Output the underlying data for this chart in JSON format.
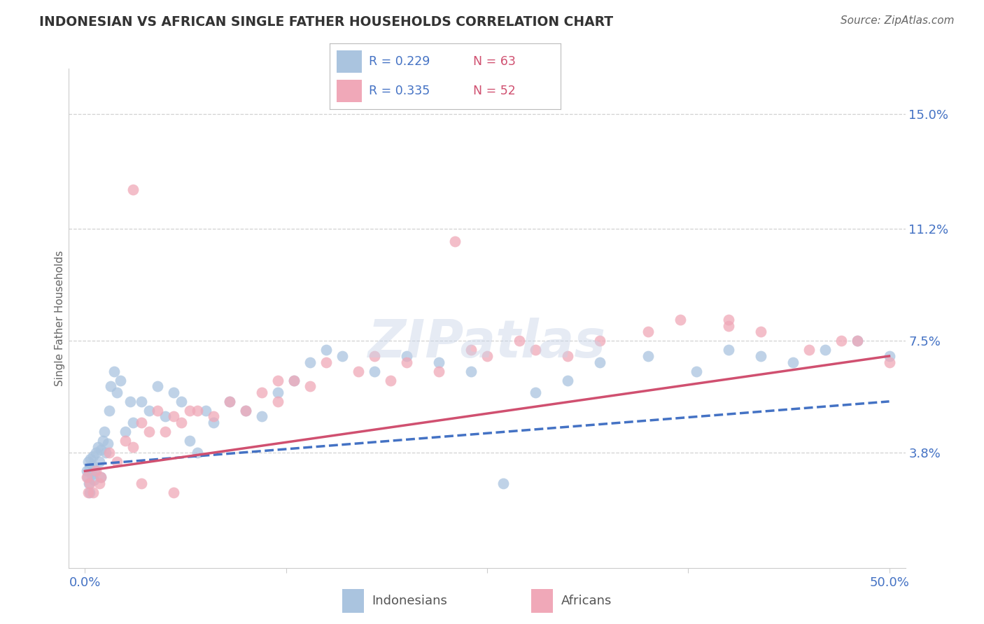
{
  "title": "INDONESIAN VS AFRICAN SINGLE FATHER HOUSEHOLDS CORRELATION CHART",
  "source": "Source: ZipAtlas.com",
  "ylabel": "Single Father Households",
  "xlim": [
    0.0,
    50.0
  ],
  "ylim": [
    0.0,
    16.0
  ],
  "xtick_vals": [
    0.0,
    12.5,
    25.0,
    37.5,
    50.0
  ],
  "xtick_labels": [
    "0.0%",
    "",
    "",
    "",
    "50.0%"
  ],
  "ytick_vals": [
    3.8,
    7.5,
    11.2,
    15.0
  ],
  "ytick_labels": [
    "3.8%",
    "7.5%",
    "11.2%",
    "15.0%"
  ],
  "indonesian_R": 0.229,
  "indonesian_N": 63,
  "african_R": 0.335,
  "african_N": 52,
  "color_indonesian": "#aac4df",
  "color_african": "#f0a8b8",
  "line_color_indonesian": "#4472C4",
  "line_color_african": "#d05070",
  "label_color_blue": "#4472C4",
  "label_color_pink": "#d05070",
  "title_color": "#333333",
  "source_color": "#666666",
  "grid_color": "#cccccc",
  "background_color": "#ffffff",
  "indonesian_x": [
    0.1,
    0.15,
    0.2,
    0.25,
    0.3,
    0.35,
    0.4,
    0.45,
    0.5,
    0.55,
    0.6,
    0.7,
    0.8,
    0.9,
    1.0,
    1.1,
    1.2,
    1.3,
    1.4,
    1.5,
    1.6,
    1.8,
    2.0,
    2.2,
    2.5,
    2.8,
    3.0,
    3.5,
    4.0,
    4.5,
    5.0,
    5.5,
    6.0,
    6.5,
    7.0,
    7.5,
    8.0,
    9.0,
    10.0,
    11.0,
    12.0,
    13.0,
    14.0,
    15.0,
    16.0,
    18.0,
    20.0,
    22.0,
    24.0,
    26.0,
    28.0,
    30.0,
    32.0,
    35.0,
    38.0,
    40.0,
    42.0,
    44.0,
    46.0,
    48.0,
    50.0,
    0.3,
    1.0
  ],
  "indonesian_y": [
    3.2,
    3.0,
    3.5,
    2.8,
    3.3,
    3.6,
    3.1,
    3.4,
    3.7,
    2.9,
    3.2,
    3.8,
    4.0,
    3.5,
    3.9,
    4.2,
    4.5,
    3.8,
    4.1,
    5.2,
    6.0,
    6.5,
    5.8,
    6.2,
    4.5,
    5.5,
    4.8,
    5.5,
    5.2,
    6.0,
    5.0,
    5.8,
    5.5,
    4.2,
    3.8,
    5.2,
    4.8,
    5.5,
    5.2,
    5.0,
    5.8,
    6.2,
    6.8,
    7.2,
    7.0,
    6.5,
    7.0,
    6.8,
    6.5,
    2.8,
    5.8,
    6.2,
    6.8,
    7.0,
    6.5,
    7.2,
    7.0,
    6.8,
    7.2,
    7.5,
    7.0,
    2.5,
    3.0
  ],
  "african_x": [
    0.1,
    0.2,
    0.3,
    0.5,
    0.7,
    0.9,
    1.0,
    1.5,
    2.0,
    2.5,
    3.0,
    3.5,
    4.0,
    4.5,
    5.0,
    5.5,
    6.0,
    7.0,
    8.0,
    9.0,
    10.0,
    11.0,
    12.0,
    13.0,
    14.0,
    15.0,
    17.0,
    18.0,
    19.0,
    20.0,
    22.0,
    24.0,
    25.0,
    27.0,
    28.0,
    30.0,
    32.0,
    35.0,
    37.0,
    40.0,
    42.0,
    45.0,
    47.0,
    48.0,
    50.0,
    3.0,
    6.5,
    12.0,
    23.0,
    40.0,
    3.5,
    5.5
  ],
  "african_y": [
    3.0,
    2.5,
    2.8,
    2.5,
    3.2,
    2.8,
    3.0,
    3.8,
    3.5,
    4.2,
    4.0,
    4.8,
    4.5,
    5.2,
    4.5,
    5.0,
    4.8,
    5.2,
    5.0,
    5.5,
    5.2,
    5.8,
    5.5,
    6.2,
    6.0,
    6.8,
    6.5,
    7.0,
    6.2,
    6.8,
    6.5,
    7.2,
    7.0,
    7.5,
    7.2,
    7.0,
    7.5,
    7.8,
    8.2,
    8.0,
    7.8,
    7.2,
    7.5,
    7.5,
    6.8,
    12.5,
    5.2,
    6.2,
    10.8,
    8.2,
    2.8,
    2.5
  ],
  "line_indo_x0": 0,
  "line_indo_x1": 50,
  "line_indo_y0": 3.4,
  "line_indo_y1": 5.5,
  "line_afr_x0": 0,
  "line_afr_x1": 50,
  "line_afr_y0": 3.2,
  "line_afr_y1": 7.0
}
